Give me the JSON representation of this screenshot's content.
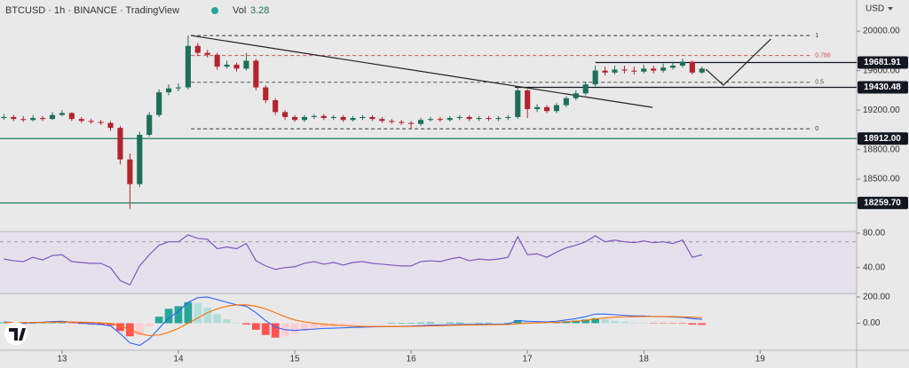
{
  "chart_data": {
    "type": "candlestick",
    "title": "BTCUSD · 1h · BINANCE · TradingView",
    "volume_label": "Vol",
    "volume": 3.28,
    "currency": "USD",
    "x": [
      -12,
      -10,
      -8,
      -6,
      -4,
      -2,
      0,
      2,
      4,
      6,
      8,
      10,
      12,
      14,
      16,
      18,
      20,
      22,
      24,
      26,
      28,
      30,
      32,
      34,
      36,
      38,
      40,
      42,
      44,
      46,
      48,
      50,
      52,
      54,
      56,
      58,
      60,
      62,
      64,
      66,
      68,
      70,
      72,
      74,
      76,
      78,
      80,
      82,
      84,
      86,
      88,
      90,
      92,
      94,
      96,
      98,
      100,
      102,
      104,
      106,
      108,
      110,
      112,
      114,
      116,
      118,
      120,
      122,
      124,
      126,
      128,
      130,
      132
    ],
    "open": [
      19120,
      19130,
      19110,
      19100,
      19120,
      19110,
      19150,
      19170,
      19110,
      19090,
      19080,
      19070,
      19020,
      18700,
      18450,
      18950,
      19150,
      19380,
      19420,
      19430,
      19850,
      19780,
      19760,
      19640,
      19660,
      19620,
      19700,
      19430,
      19300,
      19180,
      19130,
      19100,
      19130,
      19140,
      19120,
      19130,
      19100,
      19120,
      19130,
      19110,
      19090,
      19080,
      19070,
      19060,
      19100,
      19110,
      19100,
      19120,
      19130,
      19110,
      19120,
      19110,
      19120,
      19130,
      19400,
      19210,
      19230,
      19190,
      19250,
      19320,
      19370,
      19460,
      19600,
      19580,
      19610,
      19600,
      19590,
      19620,
      19600,
      19630,
      19650,
      19690,
      19580
    ],
    "high": [
      19160,
      19150,
      19140,
      19150,
      19140,
      19180,
      19200,
      19180,
      19130,
      19110,
      19100,
      19090,
      19040,
      18760,
      18980,
      19180,
      19410,
      19460,
      19470,
      19955,
      19880,
      19810,
      19780,
      19700,
      19680,
      19780,
      19720,
      19450,
      19320,
      19200,
      19150,
      19150,
      19160,
      19160,
      19150,
      19150,
      19140,
      19150,
      19150,
      19130,
      19110,
      19100,
      19090,
      19120,
      19130,
      19130,
      19140,
      19150,
      19150,
      19140,
      19140,
      19140,
      19150,
      19440,
      19410,
      19260,
      19250,
      19270,
      19340,
      19400,
      19490,
      19650,
      19640,
      19650,
      19650,
      19640,
      19660,
      19650,
      19670,
      19690,
      19720,
      19700,
      19640
    ],
    "low": [
      19100,
      19090,
      19080,
      19085,
      19090,
      19100,
      19140,
      19090,
      19070,
      19060,
      19050,
      18990,
      18650,
      18200,
      18420,
      18930,
      19130,
      19350,
      19390,
      19410,
      19750,
      19730,
      19610,
      19620,
      19590,
      19600,
      19400,
      19270,
      19150,
      19100,
      19080,
      19080,
      19110,
      19100,
      19100,
      19080,
      19085,
      19100,
      19090,
      19070,
      19060,
      19050,
      19010,
      19040,
      19085,
      19080,
      19085,
      19100,
      19090,
      19090,
      19090,
      19090,
      19100,
      19110,
      19120,
      19180,
      19170,
      19170,
      19230,
      19300,
      19350,
      19440,
      19550,
      19560,
      19570,
      19560,
      19570,
      19570,
      19580,
      19610,
      19630,
      19560,
      19570
    ],
    "close": [
      19130,
      19110,
      19100,
      19120,
      19110,
      19150,
      19170,
      19110,
      19090,
      19080,
      19070,
      19020,
      18700,
      18450,
      18950,
      19150,
      19380,
      19420,
      19430,
      19850,
      19780,
      19760,
      19640,
      19660,
      19620,
      19700,
      19430,
      19300,
      19180,
      19130,
      19100,
      19130,
      19140,
      19120,
      19130,
      19100,
      19120,
      19130,
      19110,
      19090,
      19080,
      19070,
      19060,
      19100,
      19110,
      19100,
      19120,
      19130,
      19110,
      19120,
      19110,
      19120,
      19130,
      19400,
      19210,
      19230,
      19190,
      19250,
      19320,
      19370,
      19460,
      19600,
      19580,
      19610,
      19600,
      19590,
      19620,
      19600,
      19630,
      19650,
      19690,
      19580,
      19620
    ],
    "up_color": "#1d6f58",
    "down_color": "#b3242f",
    "xlim": [
      -12.8,
      163.9
    ],
    "xticks": [
      {
        "value": 0,
        "label": "13"
      },
      {
        "value": 24,
        "label": "14"
      },
      {
        "value": 48,
        "label": "15"
      },
      {
        "value": 72,
        "label": "16"
      },
      {
        "value": 96,
        "label": "17"
      },
      {
        "value": 120,
        "label": "18"
      },
      {
        "value": 144,
        "label": "19"
      }
    ],
    "ylim": [
      17980,
      20315
    ],
    "yticks": [
      {
        "value": 20000,
        "label": "20000.00"
      },
      {
        "value": 19600,
        "label": "19600.00"
      },
      {
        "value": 19200,
        "label": "19200.00"
      },
      {
        "value": 18800,
        "label": "18800.00"
      },
      {
        "value": 18500,
        "label": "18500.00"
      }
    ],
    "grid": false,
    "levels": [
      {
        "value": 19681.91,
        "label": "19681.91",
        "x_from": 110,
        "color": "#131722"
      },
      {
        "value": 19430.48,
        "label": "19430.48",
        "x_from": 93.4,
        "color": "#131722"
      },
      {
        "value": 18912,
        "label": "18912.00",
        "x_from": -12.8,
        "color": "#1f7a60"
      },
      {
        "value": 18259.7,
        "label": "18259.70",
        "x_from": -12.8,
        "color": "#1f7a60"
      }
    ],
    "fibonacci": {
      "x": [
        26.6,
        154.8
      ],
      "levels": [
        {
          "label": "1",
          "price": 19955,
          "color": "#333333"
        },
        {
          "label": "0.786",
          "price": 19753,
          "color": "#d05050"
        },
        {
          "label": "0.5",
          "price": 19482,
          "color": "#555555"
        },
        {
          "label": "0",
          "price": 19010,
          "color": "#333333"
        }
      ]
    },
    "trend_line": {
      "x": [
        26.6,
        121.8
      ],
      "price": [
        19955,
        19227
      ],
      "color": "#222222"
    },
    "projection": {
      "x": [
        132.8,
        136.4,
        146.2
      ],
      "price": [
        19614,
        19452,
        19919
      ],
      "color": "#222222"
    },
    "rsi": {
      "color": "#7e57c2",
      "ylim": [
        11,
        81
      ],
      "yticks": [
        {
          "value": 80,
          "label": "80.00"
        },
        {
          "value": 40,
          "label": "40.00"
        }
      ],
      "upper_band": 70,
      "values": [
        50,
        48,
        47,
        52,
        49,
        54,
        55,
        47,
        46,
        45,
        45,
        40,
        25,
        20,
        42,
        55,
        66,
        70,
        70,
        78,
        74,
        73,
        62,
        64,
        62,
        68,
        48,
        42,
        38,
        40,
        41,
        45,
        47,
        44,
        46,
        43,
        46,
        47,
        45,
        44,
        43,
        42,
        42,
        47,
        48,
        47,
        50,
        52,
        48,
        50,
        49,
        50,
        52,
        76,
        55,
        56,
        52,
        58,
        63,
        66,
        70,
        77,
        70,
        72,
        70,
        69,
        71,
        69,
        70,
        68,
        72,
        52,
        55
      ]
    },
    "macd": {
      "ylim": [
        -200,
        220
      ],
      "yticks": [
        {
          "value": 200,
          "label": "200.00"
        },
        {
          "value": 0,
          "label": "0.00"
        }
      ],
      "macd_color": "#2962ff",
      "signal_color": "#ff6d00",
      "histogram_colors": [
        "#26a69a",
        "#b2dfdb",
        "#ff5252",
        "#ffcdd2"
      ],
      "macd": [
        10,
        5,
        0,
        5,
        8,
        12,
        15,
        8,
        2,
        -5,
        -10,
        -20,
        -80,
        -150,
        -170,
        -120,
        -40,
        40,
        90,
        160,
        195,
        200,
        180,
        160,
        140,
        130,
        80,
        20,
        -30,
        -50,
        -55,
        -50,
        -45,
        -40,
        -38,
        -35,
        -32,
        -30,
        -28,
        -26,
        -25,
        -24,
        -22,
        -18,
        -15,
        -14,
        -12,
        -10,
        -10,
        -9,
        -8,
        -8,
        -6,
        20,
        15,
        12,
        10,
        15,
        25,
        35,
        50,
        70,
        70,
        65,
        60,
        55,
        55,
        50,
        50,
        48,
        45,
        35,
        30
      ],
      "signal": [
        5,
        6,
        5,
        5,
        6,
        7,
        9,
        9,
        8,
        6,
        3,
        -2,
        -20,
        -50,
        -80,
        -95,
        -90,
        -70,
        -40,
        0,
        40,
        80,
        110,
        130,
        140,
        140,
        130,
        110,
        80,
        50,
        25,
        10,
        0,
        -8,
        -14,
        -18,
        -22,
        -24,
        -25,
        -25,
        -25,
        -25,
        -24,
        -23,
        -21,
        -19,
        -17,
        -15,
        -14,
        -13,
        -12,
        -11,
        -10,
        -4,
        0,
        3,
        5,
        7,
        10,
        15,
        22,
        32,
        40,
        46,
        49,
        50,
        51,
        51,
        51,
        50,
        49,
        46,
        43
      ],
      "histogram": [
        5,
        -1,
        -5,
        0,
        2,
        5,
        6,
        -1,
        -6,
        -11,
        -13,
        -18,
        -60,
        -100,
        -90,
        -25,
        50,
        110,
        130,
        160,
        155,
        120,
        70,
        30,
        0,
        -10,
        -50,
        -90,
        -110,
        -100,
        -80,
        -60,
        -45,
        -32,
        -24,
        -17,
        -10,
        -6,
        -3,
        -1,
        0,
        1,
        2,
        5,
        6,
        5,
        5,
        5,
        4,
        4,
        4,
        3,
        4,
        24,
        15,
        9,
        5,
        8,
        15,
        20,
        28,
        38,
        30,
        19,
        11,
        5,
        4,
        -1,
        -1,
        -2,
        -4,
        -11,
        -13
      ]
    }
  }
}
